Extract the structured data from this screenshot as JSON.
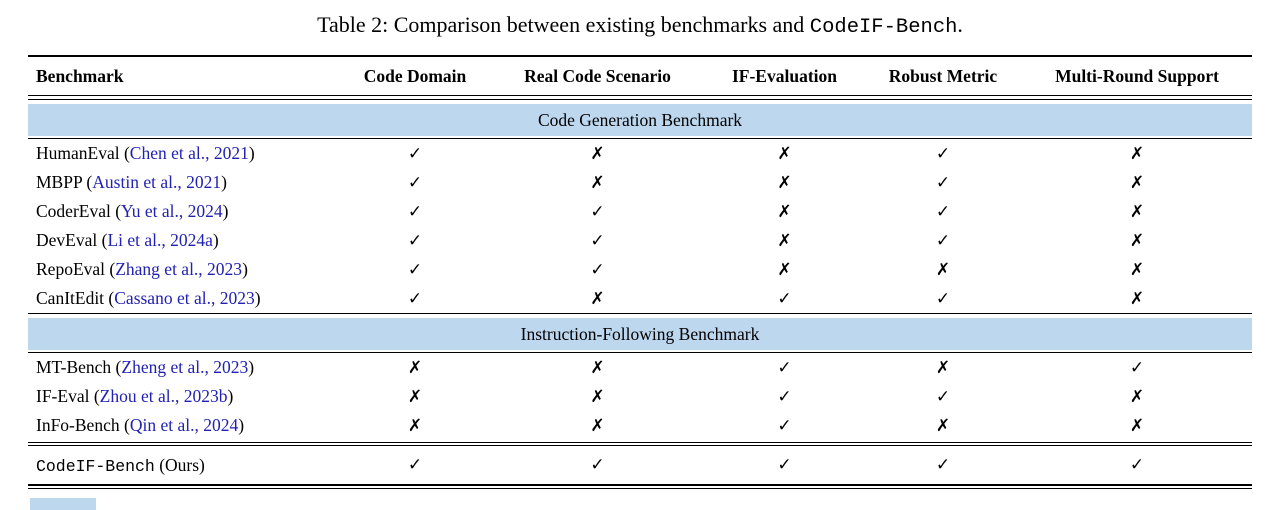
{
  "title": {
    "before": "Table 2: Comparison between existing benchmarks and ",
    "mono": "CodeIF-Bench",
    "after": "."
  },
  "colors": {
    "band": "#bdd7ee",
    "citation": "#2121b2"
  },
  "header": {
    "columns": [
      "Benchmark",
      "Code Domain",
      "Real Code Scenario",
      "IF-Evaluation",
      "Robust Metric",
      "Multi-Round Support"
    ]
  },
  "sections": [
    {
      "band": "Code Generation Benchmark",
      "rows": [
        {
          "before": "HumanEval (",
          "citation": "Chen et al., 2021",
          "after": ")",
          "marks": [
            "✓",
            "✗",
            "✗",
            "✓",
            "✗"
          ]
        },
        {
          "before": "MBPP (",
          "citation": "Austin et al., 2021",
          "after": ")",
          "marks": [
            "✓",
            "✗",
            "✗",
            "✓",
            "✗"
          ]
        },
        {
          "before": "CoderEval (",
          "citation": "Yu et al., 2024",
          "after": ")",
          "marks": [
            "✓",
            "✓",
            "✗",
            "✓",
            "✗"
          ]
        },
        {
          "before": "DevEval (",
          "citation": "Li et al., 2024a",
          "after": ")",
          "marks": [
            "✓",
            "✓",
            "✗",
            "✓",
            "✗"
          ]
        },
        {
          "before": "RepoEval (",
          "citation": "Zhang et al., 2023",
          "after": ")",
          "marks": [
            "✓",
            "✓",
            "✗",
            "✗",
            "✗"
          ]
        },
        {
          "before": "CanItEdit (",
          "citation": "Cassano et al., 2023",
          "after": ")",
          "marks": [
            "✓",
            "✗",
            "✓",
            "✓",
            "✗"
          ]
        }
      ]
    },
    {
      "band": "Instruction-Following Benchmark",
      "rows": [
        {
          "before": "MT-Bench (",
          "citation": "Zheng et al., 2023",
          "after": ")",
          "marks": [
            "✗",
            "✗",
            "✓",
            "✗",
            "✓"
          ]
        },
        {
          "before": "IF-Eval (",
          "citation": "Zhou et al., 2023b",
          "after": ")",
          "marks": [
            "✗",
            "✗",
            "✓",
            "✓",
            "✗"
          ]
        },
        {
          "before": "InFo-Bench (",
          "citation": "Qin et al., 2024",
          "after": ")",
          "marks": [
            "✗",
            "✗",
            "✓",
            "✗",
            "✗"
          ]
        }
      ]
    }
  ],
  "final_row": {
    "name_mono": "CodeIF-Bench",
    "name_suffix": " (Ours)",
    "marks": [
      "✓",
      "✓",
      "✓",
      "✓",
      "✓"
    ]
  }
}
